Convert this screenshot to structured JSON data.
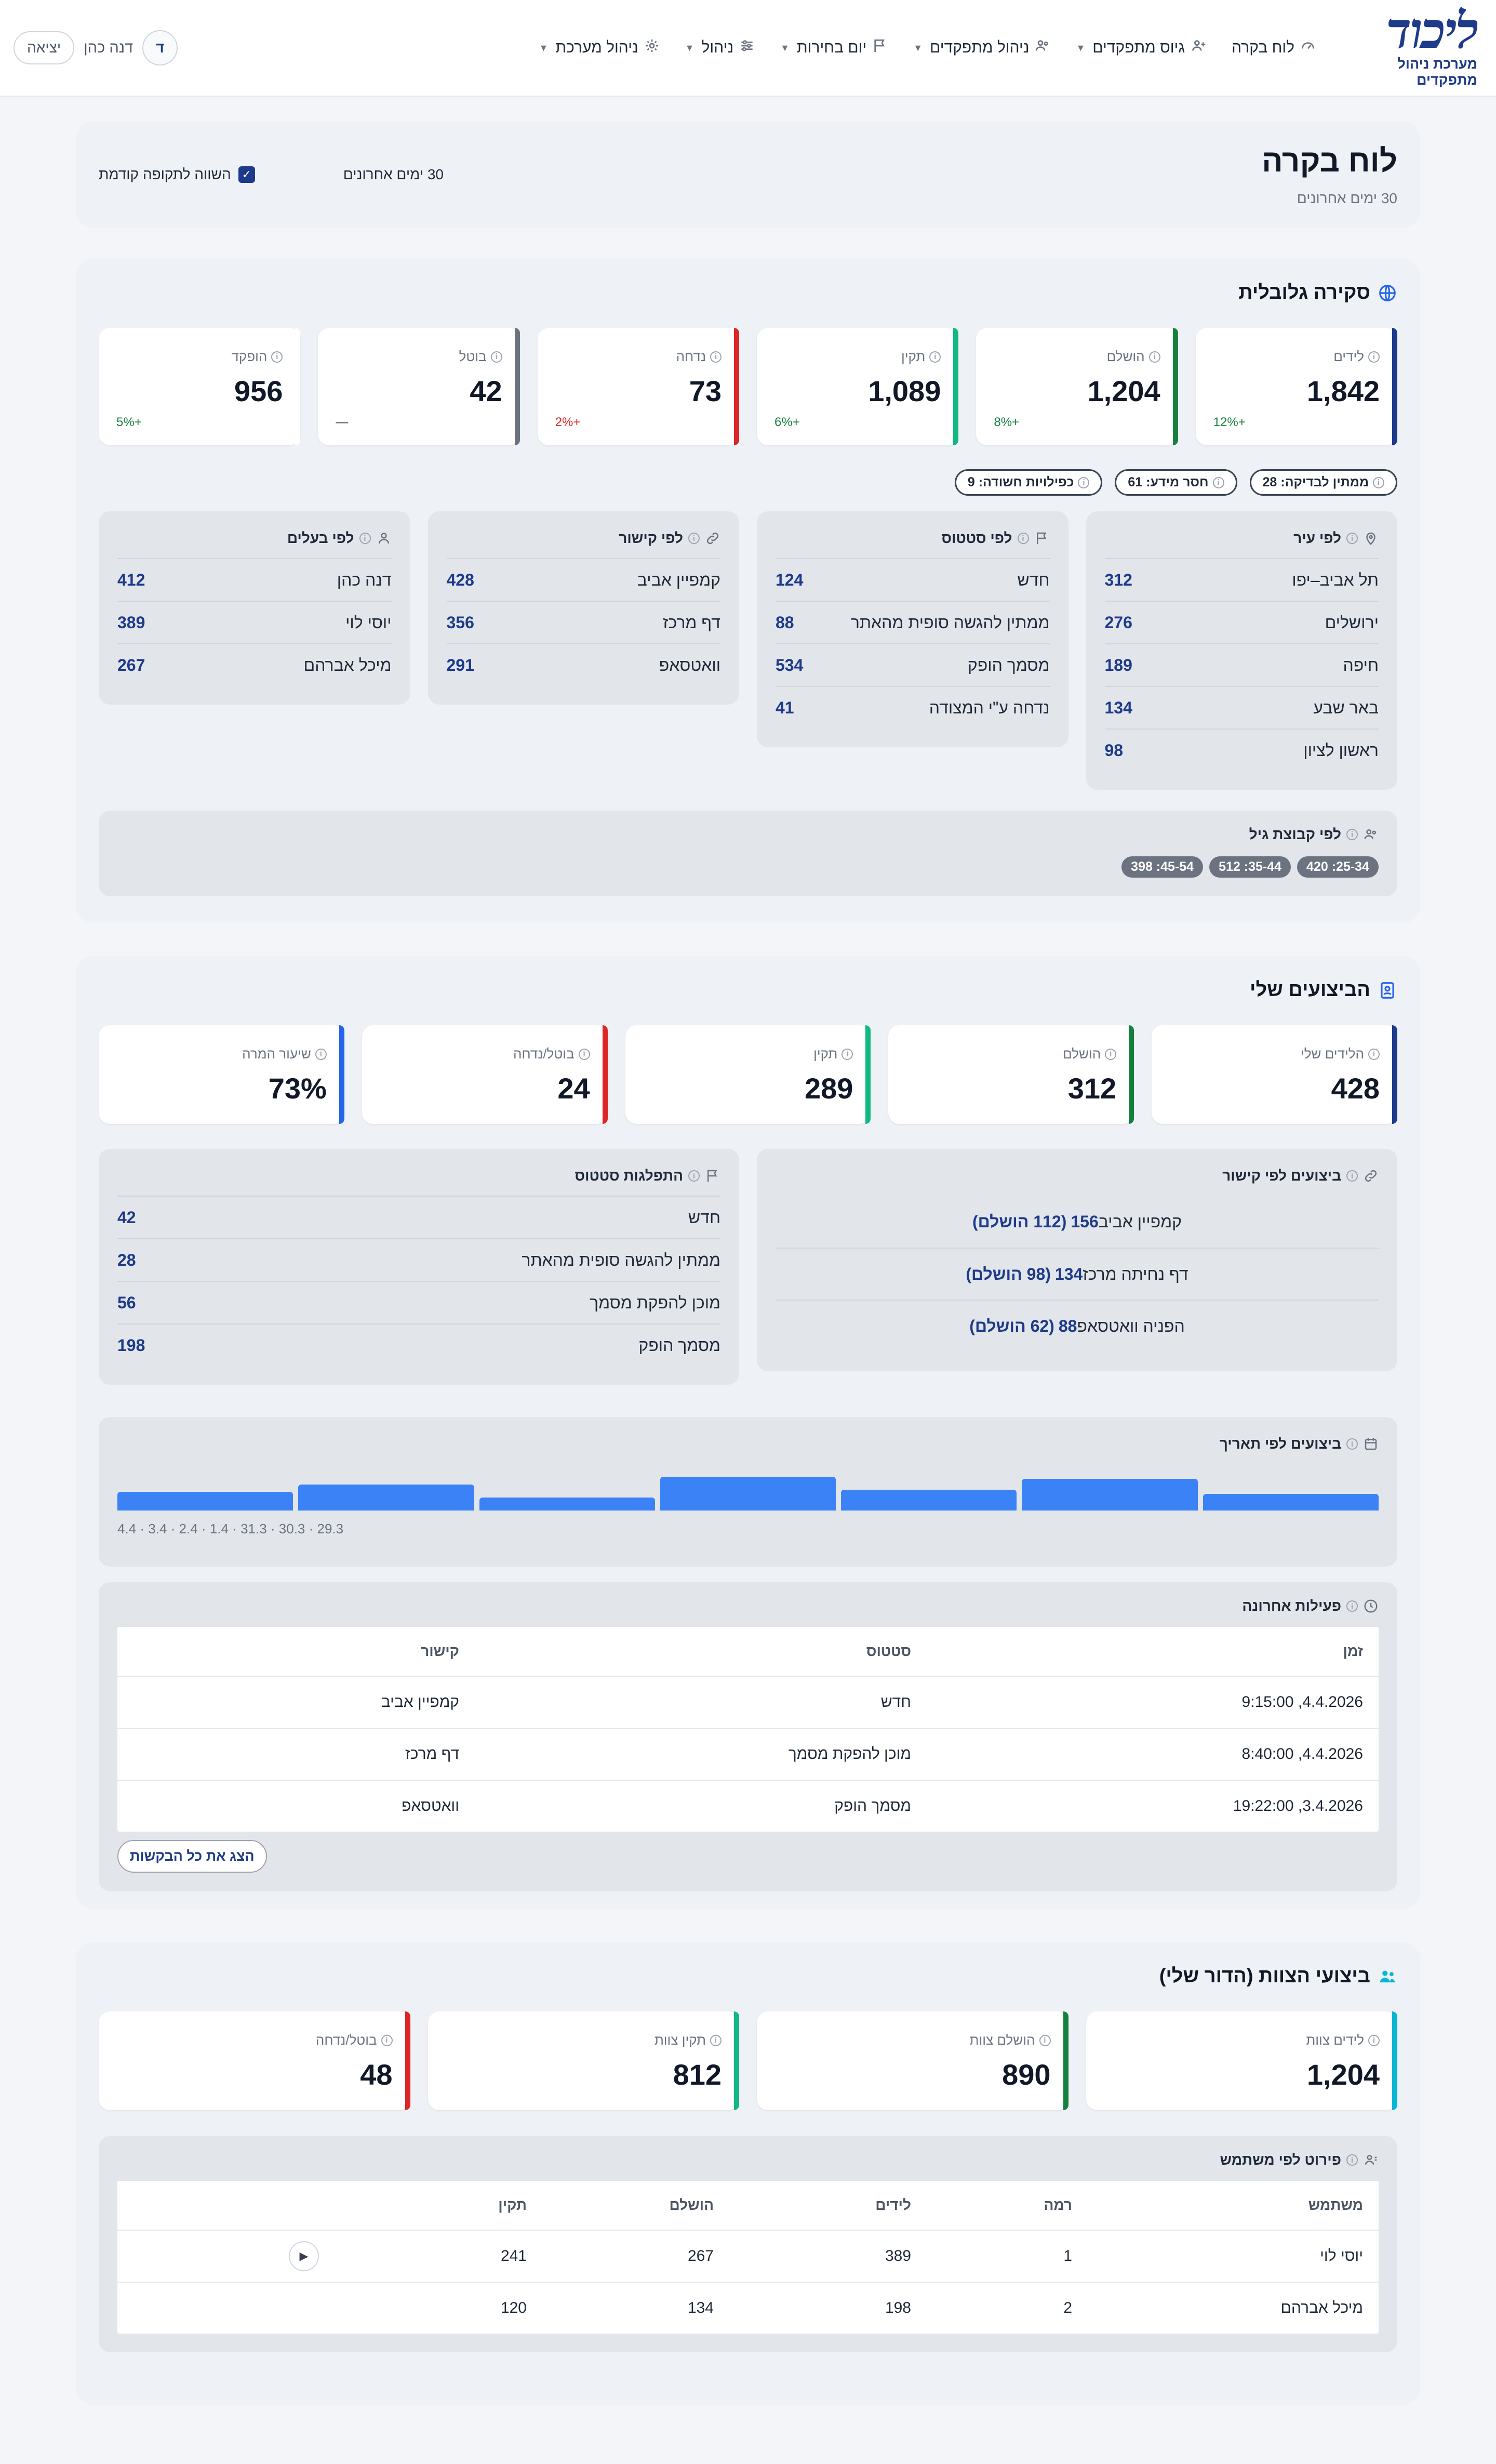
{
  "header": {
    "logo_text": "ליכוד",
    "logo_sub": "מערכת ניהול מתפקדים",
    "nav": [
      {
        "label": "לוח בקרה",
        "icon": "dashboard-icon",
        "caret": false
      },
      {
        "label": "גיוס מתפקדים",
        "icon": "user-plus-icon",
        "caret": true
      },
      {
        "label": "ניהול מתפקדים",
        "icon": "users-icon",
        "caret": true
      },
      {
        "label": "יום בחירות",
        "icon": "flag-icon",
        "caret": true
      },
      {
        "label": "ניהול",
        "icon": "sliders-icon",
        "caret": true
      },
      {
        "label": "ניהול מערכת",
        "icon": "gear-icon",
        "caret": true
      }
    ],
    "avatar_letter": "ד",
    "user_name": "דנה כהן",
    "logout_label": "יציאה"
  },
  "page": {
    "title": "לוח בקרה",
    "subtitle": "30 ימים אחרונים",
    "range_label": "30 ימים אחרונים",
    "compare_label": "השווה לתקופה קודמת",
    "compare_checked": true
  },
  "global": {
    "title": "סקירה גלובלית",
    "kpis": [
      {
        "label": "לידים",
        "value": "1,842",
        "delta": "+12%",
        "color": "#1e3a8a",
        "delta_color": "#15803d"
      },
      {
        "label": "הושלם",
        "value": "1,204",
        "delta": "+8%",
        "color": "#15803d",
        "delta_color": "#15803d"
      },
      {
        "label": "תקין",
        "value": "1,089",
        "delta": "+6%",
        "color": "#10b981",
        "delta_color": "#15803d"
      },
      {
        "label": "נדחה",
        "value": "73",
        "delta": "+2%",
        "color": "#dc2626",
        "delta_color": "#dc2626"
      },
      {
        "label": "בוטל",
        "value": "42",
        "delta": "—",
        "color": "#6b7280",
        "delta_color": "#374151"
      },
      {
        "label": "הופקד",
        "value": "956",
        "delta": "+5%",
        "color": "#ffffff",
        "delta_color": "#15803d"
      }
    ],
    "pills": [
      "ממתין לבדיקה: 28",
      "חסר מידע: 61",
      "כפילויות חשודה: 9"
    ],
    "by_city": {
      "title": "לפי עיר",
      "rows": [
        {
          "name": "תל אביב–יפו",
          "value": "312"
        },
        {
          "name": "ירושלים",
          "value": "276"
        },
        {
          "name": "חיפה",
          "value": "189"
        },
        {
          "name": "באר שבע",
          "value": "134"
        },
        {
          "name": "ראשון לציון",
          "value": "98"
        }
      ]
    },
    "by_status": {
      "title": "לפי סטטוס",
      "rows": [
        {
          "name": "חדש",
          "value": "124"
        },
        {
          "name": "ממתין להגשה סופית מהאתר",
          "value": "88"
        },
        {
          "name": "מסמך הופק",
          "value": "534"
        },
        {
          "name": "נדחה ע\"י המצודה",
          "value": "41"
        }
      ]
    },
    "by_link": {
      "title": "לפי קישור",
      "rows": [
        {
          "name": "קמפיין אביב",
          "value": "428"
        },
        {
          "name": "דף מרכז",
          "value": "356"
        },
        {
          "name": "וואטסאפ",
          "value": "291"
        }
      ]
    },
    "by_owner": {
      "title": "לפי בעלים",
      "rows": [
        {
          "name": "דנה כהן",
          "value": "412"
        },
        {
          "name": "יוסי לוי",
          "value": "389"
        },
        {
          "name": "מיכל אברהם",
          "value": "267"
        }
      ]
    },
    "by_age": {
      "title": "לפי קבוצת גיל",
      "tags": [
        "25-34: 420",
        "35-44: 512",
        "45-54: 398"
      ]
    }
  },
  "mine": {
    "title": "הביצועים שלי",
    "kpis": [
      {
        "label": "הלידים שלי",
        "value": "428",
        "color": "#1e3a8a"
      },
      {
        "label": "הושלם",
        "value": "312",
        "color": "#15803d"
      },
      {
        "label": "תקין",
        "value": "289",
        "color": "#10b981"
      },
      {
        "label": "בוטל/נדחה",
        "value": "24",
        "color": "#dc2626"
      },
      {
        "label": "שיעור המרה",
        "value": "73%",
        "color": "#2563eb"
      }
    ],
    "by_link": {
      "title": "ביצועים לפי קישור",
      "rows": [
        {
          "name": "קמפיין אביב",
          "count": "156",
          "done": "(112 הושלם)"
        },
        {
          "name": "דף נחיתה מרכז",
          "count": "134",
          "done": "(98 הושלם)"
        },
        {
          "name": "הפניה וואטסאפ",
          "count": "88",
          "done": "(62 הושלם)"
        }
      ]
    },
    "status_dist": {
      "title": "התפלגות סטטוס",
      "rows": [
        {
          "name": "חדש",
          "value": "42"
        },
        {
          "name": "ממתין להגשה סופית מהאתר",
          "value": "28"
        },
        {
          "name": "מוכן להפקת מסמך",
          "value": "56"
        },
        {
          "name": "מסמך הופק",
          "value": "198"
        }
      ]
    },
    "by_date": {
      "title": "ביצועים לפי תאריך",
      "axis_label": "29.3 · 30.3 · 31.3 · 1.4 · 2.4 · 3.4 · 4.4",
      "values": [
        9,
        17,
        11,
        18,
        7,
        14,
        10
      ],
      "max": 20
    },
    "activity": {
      "title": "פעילות אחרונה",
      "headers": [
        "זמן",
        "סטטוס",
        "קישור"
      ],
      "rows": [
        [
          "4.4.2026, 9:15:00",
          "חדש",
          "קמפיין אביב"
        ],
        [
          "4.4.2026, 8:40:00",
          "מוכן להפקת מסמך",
          "דף מרכז"
        ],
        [
          "3.4.2026, 19:22:00",
          "מסמך הופק",
          "וואטסאפ"
        ]
      ],
      "show_all": "הצג את כל הבקשות"
    }
  },
  "team": {
    "title": "ביצועי הצוות (הדור שלי)",
    "kpis": [
      {
        "label": "לידים צוות",
        "value": "1,204",
        "color": "#06b6d4"
      },
      {
        "label": "הושלם צוות",
        "value": "890",
        "color": "#15803d"
      },
      {
        "label": "תקין צוות",
        "value": "812",
        "color": "#10b981"
      },
      {
        "label": "בוטל/נדחה",
        "value": "48",
        "color": "#dc2626"
      }
    ],
    "per_user": {
      "title": "פירוט לפי משתמש",
      "headers": [
        "משתמש",
        "רמה",
        "לידים",
        "הושלם",
        "תקין"
      ],
      "rows": [
        [
          "יוסי לוי",
          "1",
          "389",
          "267",
          "241"
        ],
        [
          "מיכל אברהם",
          "2",
          "198",
          "134",
          "120"
        ]
      ]
    }
  }
}
